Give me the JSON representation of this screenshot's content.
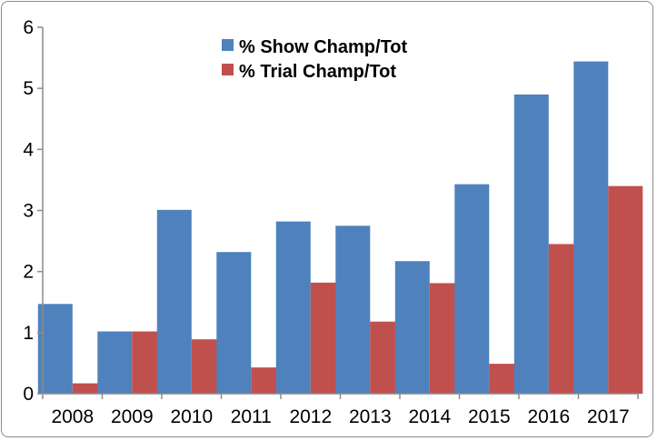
{
  "chart_data": {
    "type": "bar",
    "title": "",
    "xlabel": "",
    "ylabel": "",
    "categories": [
      "2008",
      "2009",
      "2010",
      "2011",
      "2012",
      "2013",
      "2014",
      "2015",
      "2016",
      "2017"
    ],
    "series": [
      {
        "name": "% Show Champ/Tot",
        "color": "#4f81bd",
        "values": [
          1.47,
          1.02,
          3.01,
          2.32,
          2.82,
          2.75,
          2.17,
          3.43,
          4.9,
          5.44
        ]
      },
      {
        "name": "% Trial Champ/Tot",
        "color": "#c0504d",
        "values": [
          0.17,
          1.02,
          0.89,
          0.43,
          1.82,
          1.18,
          1.81,
          0.49,
          2.45,
          3.4
        ]
      }
    ],
    "ylim": [
      0,
      6
    ],
    "yticks": [
      "0",
      "1",
      "2",
      "3",
      "4",
      "5",
      "6"
    ],
    "grid": false,
    "legend": "top-center"
  }
}
